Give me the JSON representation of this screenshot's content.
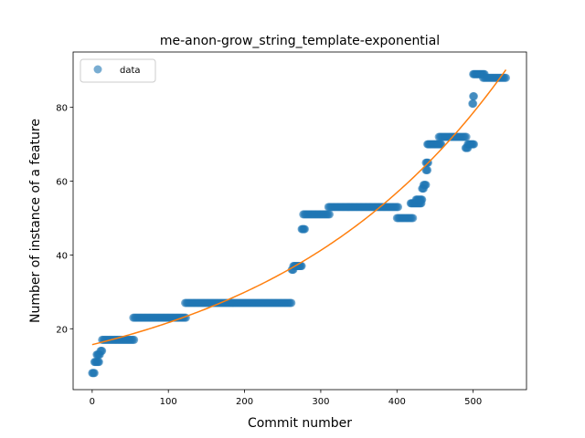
{
  "chart_data": {
    "type": "scatter",
    "title": "me-anon-grow_string_template-exponential",
    "xlabel": "Commit number",
    "ylabel": "Number of instance of a feature",
    "xlim": [
      -25,
      570
    ],
    "ylim": [
      3.5,
      95
    ],
    "xticks": [
      0,
      100,
      200,
      300,
      400,
      500
    ],
    "yticks": [
      20,
      40,
      60,
      80
    ],
    "grid": false,
    "legend_position": "upper-left",
    "series": [
      {
        "name": "data",
        "kind": "scatter",
        "color": "#1f77b4",
        "alpha": 0.6,
        "segments": [
          {
            "x_start": 0,
            "x_end": 3,
            "y": 8
          },
          {
            "x_start": 3,
            "x_end": 9,
            "y": 11
          },
          {
            "x_start": 6,
            "x_end": 10,
            "y": 13
          },
          {
            "x_start": 11,
            "x_end": 13,
            "y": 14
          },
          {
            "x_start": 13,
            "x_end": 56,
            "y": 17
          },
          {
            "x_start": 54,
            "x_end": 124,
            "y": 23
          },
          {
            "x_start": 122,
            "x_end": 262,
            "y": 27
          },
          {
            "x_start": 262,
            "x_end": 264,
            "y": 36
          },
          {
            "x_start": 264,
            "x_end": 275,
            "y": 37
          },
          {
            "x_start": 275,
            "x_end": 279,
            "y": 47
          },
          {
            "x_start": 277,
            "x_end": 312,
            "y": 51
          },
          {
            "x_start": 310,
            "x_end": 402,
            "y": 53
          },
          {
            "x_start": 400,
            "x_end": 422,
            "y": 50
          },
          {
            "x_start": 418,
            "x_end": 432,
            "y": 54
          },
          {
            "x_start": 425,
            "x_end": 433,
            "y": 55
          },
          {
            "x_start": 433,
            "x_end": 435,
            "y": 58
          },
          {
            "x_start": 435,
            "x_end": 438,
            "y": 59
          },
          {
            "x_start": 438,
            "x_end": 440,
            "y": 63
          },
          {
            "x_start": 438,
            "x_end": 441,
            "y": 65
          },
          {
            "x_start": 440,
            "x_end": 458,
            "y": 70
          },
          {
            "x_start": 455,
            "x_end": 492,
            "y": 72
          },
          {
            "x_start": 490,
            "x_end": 493,
            "y": 69
          },
          {
            "x_start": 493,
            "x_end": 501,
            "y": 70
          },
          {
            "x_start": 499,
            "x_end": 500,
            "y": 81
          },
          {
            "x_start": 500,
            "x_end": 501,
            "y": 83
          },
          {
            "x_start": 500,
            "x_end": 515,
            "y": 89
          },
          {
            "x_start": 513,
            "x_end": 543,
            "y": 88
          }
        ]
      },
      {
        "name": "exponential fit",
        "kind": "line",
        "color": "#ff7f0e",
        "fit": {
          "a": 15.7,
          "b": 0.00322
        },
        "x_range": [
          0,
          543
        ]
      }
    ]
  }
}
